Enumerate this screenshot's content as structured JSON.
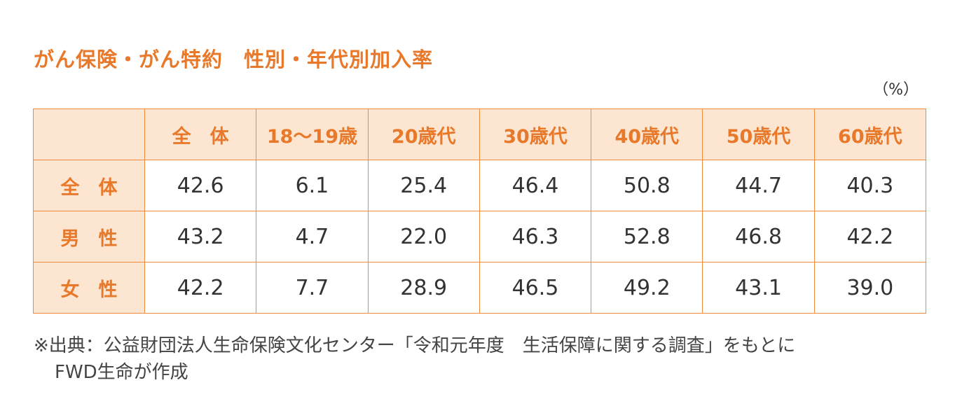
{
  "title": "がん保険・がん特約　性別・年代別加入率",
  "unit": "（%）",
  "chart_data": {
    "type": "table",
    "title": "がん保険・がん特約　性別・年代別加入率",
    "unit": "%",
    "columns": [
      "全　体",
      "18〜19歳",
      "20歳代",
      "30歳代",
      "40歳代",
      "50歳代",
      "60歳代"
    ],
    "rows": [
      {
        "label": "全　体",
        "values": [
          "42.6",
          "6.1",
          "25.4",
          "46.4",
          "50.8",
          "44.7",
          "40.3"
        ]
      },
      {
        "label": "男　性",
        "values": [
          "43.2",
          "4.7",
          "22.0",
          "46.3",
          "52.8",
          "46.8",
          "42.2"
        ]
      },
      {
        "label": "女　性",
        "values": [
          "42.2",
          "7.7",
          "28.9",
          "46.5",
          "49.2",
          "43.1",
          "39.0"
        ]
      }
    ]
  },
  "note": {
    "line1": "※出典：公益財団法人生命保険文化センター「令和元年度　生活保障に関する調査」をもとに",
    "line2": "FWD生命が作成"
  },
  "colors": {
    "accent": "#e8792a",
    "header_bg": "#fce6d2",
    "border": "#ee8a3c"
  }
}
